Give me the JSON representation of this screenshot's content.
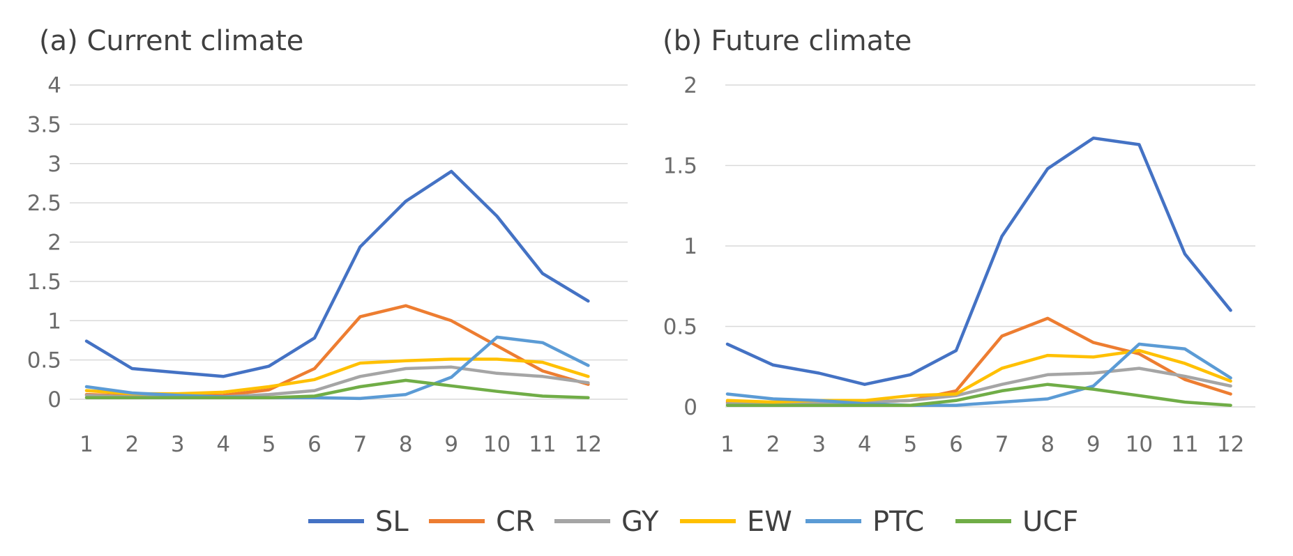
{
  "chart_data": [
    {
      "type": "line",
      "title": "(a) Current climate",
      "xlabel": "",
      "ylabel": "",
      "categories": [
        "1",
        "2",
        "3",
        "4",
        "5",
        "6",
        "7",
        "8",
        "9",
        "10",
        "11",
        "12"
      ],
      "yticks": [
        "0",
        "0.5",
        "1",
        "1.5",
        "2",
        "2.5",
        "3",
        "3.5",
        "4"
      ],
      "ylim": [
        0,
        4
      ],
      "grid": true,
      "series": [
        {
          "name": "SL",
          "values": [
            0.74,
            0.39,
            0.34,
            0.29,
            0.42,
            0.78,
            1.94,
            2.52,
            2.9,
            2.33,
            1.6,
            1.25
          ]
        },
        {
          "name": "CR",
          "values": [
            0.06,
            0.04,
            0.04,
            0.05,
            0.12,
            0.39,
            1.05,
            1.19,
            1.0,
            0.68,
            0.36,
            0.19
          ]
        },
        {
          "name": "GY",
          "values": [
            0.05,
            0.03,
            0.03,
            0.03,
            0.06,
            0.11,
            0.29,
            0.39,
            0.41,
            0.33,
            0.29,
            0.21
          ]
        },
        {
          "name": "EW",
          "values": [
            0.11,
            0.07,
            0.07,
            0.09,
            0.16,
            0.25,
            0.46,
            0.49,
            0.51,
            0.51,
            0.47,
            0.29
          ]
        },
        {
          "name": "PTC",
          "values": [
            0.16,
            0.08,
            0.05,
            0.03,
            0.02,
            0.02,
            0.01,
            0.06,
            0.28,
            0.79,
            0.72,
            0.43
          ]
        },
        {
          "name": "UCF",
          "values": [
            0.02,
            0.02,
            0.02,
            0.02,
            0.02,
            0.04,
            0.16,
            0.24,
            0.17,
            0.1,
            0.04,
            0.02
          ]
        }
      ]
    },
    {
      "type": "line",
      "title": "(b) Future climate",
      "xlabel": "",
      "ylabel": "",
      "categories": [
        "1",
        "2",
        "3",
        "4",
        "5",
        "6",
        "7",
        "8",
        "9",
        "10",
        "11",
        "12"
      ],
      "yticks": [
        "0",
        "0.5",
        "1",
        "1.5",
        "2"
      ],
      "ylim": [
        0,
        2
      ],
      "grid": true,
      "series": [
        {
          "name": "SL",
          "values": [
            0.39,
            0.26,
            0.21,
            0.14,
            0.2,
            0.35,
            1.06,
            1.48,
            1.67,
            1.63,
            0.95,
            0.6
          ]
        },
        {
          "name": "CR",
          "values": [
            0.03,
            0.02,
            0.02,
            0.03,
            0.04,
            0.1,
            0.44,
            0.55,
            0.4,
            0.33,
            0.17,
            0.08
          ]
        },
        {
          "name": "GY",
          "values": [
            0.02,
            0.02,
            0.02,
            0.03,
            0.04,
            0.07,
            0.14,
            0.2,
            0.21,
            0.24,
            0.19,
            0.13
          ]
        },
        {
          "name": "EW",
          "values": [
            0.04,
            0.03,
            0.04,
            0.04,
            0.07,
            0.08,
            0.24,
            0.32,
            0.31,
            0.35,
            0.27,
            0.16
          ]
        },
        {
          "name": "PTC",
          "values": [
            0.08,
            0.05,
            0.04,
            0.02,
            0.01,
            0.01,
            0.03,
            0.05,
            0.13,
            0.39,
            0.36,
            0.18
          ]
        },
        {
          "name": "UCF",
          "values": [
            0.01,
            0.01,
            0.01,
            0.01,
            0.01,
            0.04,
            0.1,
            0.14,
            0.11,
            0.07,
            0.03,
            0.01
          ]
        }
      ]
    }
  ],
  "legend": {
    "placement": "bottom-center",
    "items": [
      {
        "name": "SL",
        "color": "#4472C4"
      },
      {
        "name": "CR",
        "color": "#ED7D31"
      },
      {
        "name": "GY",
        "color": "#A5A5A5"
      },
      {
        "name": "EW",
        "color": "#FFC000"
      },
      {
        "name": "PTC",
        "color": "#5B9BD5"
      },
      {
        "name": "UCF",
        "color": "#70AD47"
      }
    ]
  }
}
